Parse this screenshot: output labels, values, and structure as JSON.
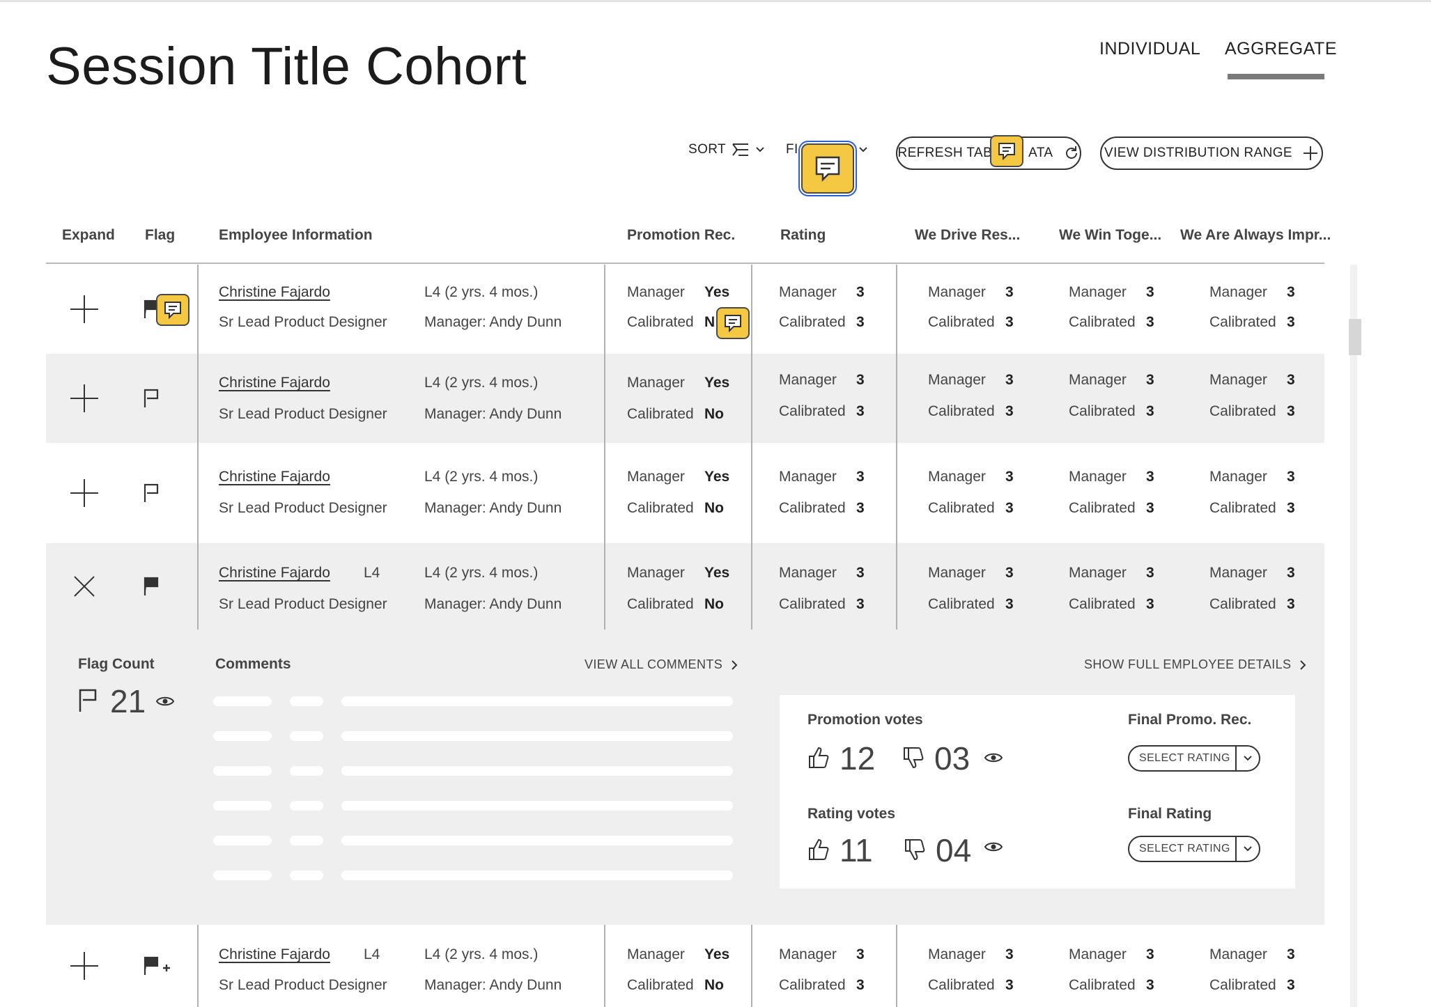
{
  "page": {
    "title": "Session Title Cohort",
    "view_tabs": [
      {
        "label": "INDIVIDUAL",
        "active": false
      },
      {
        "label": "AGGREGATE",
        "active": true
      }
    ]
  },
  "toolbar": {
    "sort_label": "SORT",
    "filter_label": "FI",
    "refresh_label": "REFRESH TAB",
    "refresh_label_tail": "ATA",
    "distribution_label": "VIEW DISTRIBUTION RANGE"
  },
  "columns": [
    "Expand",
    "Flag",
    "Employee Information",
    "Promotion Rec.",
    "Rating",
    "We Drive Res...",
    "We Win Toge...",
    "We Are Always Impr..."
  ],
  "rows": [
    {
      "name": "Christine Fajardo",
      "title": "Sr Lead Product Designer",
      "level_short": "",
      "level": "L4 (2 yrs. 4 mos.)",
      "manager": "Manager: Andy Dunn",
      "promo_manager_label": "Manager",
      "promo_manager": "Yes",
      "promo_calibrated_label": "Calibrated",
      "promo_calibrated": "N",
      "rating_manager": "3",
      "rating_calibrated": "3",
      "v1_manager": "3",
      "v1_calibrated": "3",
      "v2_manager": "3",
      "v2_calibrated": "3",
      "v3_manager": "3",
      "v3_calibrated": "3",
      "expanded": false
    },
    {
      "name": "Christine Fajardo",
      "title": "Sr Lead Product Designer",
      "level_short": "",
      "level": "L4 (2 yrs. 4 mos.)",
      "manager": "Manager: Andy Dunn",
      "promo_manager_label": "Manager",
      "promo_manager": "Yes",
      "promo_calibrated_label": "Calibrated",
      "promo_calibrated": "No",
      "rating_manager": "3",
      "rating_calibrated": "3",
      "v1_manager": "3",
      "v1_calibrated": "3",
      "v2_manager": "3",
      "v2_calibrated": "3",
      "v3_manager": "3",
      "v3_calibrated": "3",
      "expanded": false
    },
    {
      "name": "Christine Fajardo",
      "title": "Sr Lead Product Designer",
      "level_short": "",
      "level": "L4 (2 yrs. 4 mos.)",
      "manager": "Manager: Andy Dunn",
      "promo_manager_label": "Manager",
      "promo_manager": "Yes",
      "promo_calibrated_label": "Calibrated",
      "promo_calibrated": "No",
      "rating_manager": "3",
      "rating_calibrated": "3",
      "v1_manager": "3",
      "v1_calibrated": "3",
      "v2_manager": "3",
      "v2_calibrated": "3",
      "v3_manager": "3",
      "v3_calibrated": "3",
      "expanded": false
    },
    {
      "name": "Christine Fajardo",
      "title": "Sr Lead Product Designer",
      "level_short": "L4",
      "level": "L4 (2 yrs. 4 mos.)",
      "manager": "Manager: Andy Dunn",
      "promo_manager_label": "Manager",
      "promo_manager": "Yes",
      "promo_calibrated_label": "Calibrated",
      "promo_calibrated": "No",
      "rating_manager": "3",
      "rating_calibrated": "3",
      "v1_manager": "3",
      "v1_calibrated": "3",
      "v2_manager": "3",
      "v2_calibrated": "3",
      "v3_manager": "3",
      "v3_calibrated": "3",
      "expanded": true
    },
    {
      "name": "Christine Fajardo",
      "title": "Sr Lead Product Designer",
      "level_short": "L4",
      "level": "L4 (2 yrs. 4 mos.)",
      "manager": "Manager: Andy Dunn",
      "promo_manager_label": "Manager",
      "promo_manager": "Yes",
      "promo_calibrated_label": "Calibrated",
      "promo_calibrated": "No",
      "rating_manager": "3",
      "rating_calibrated": "3",
      "v1_manager": "3",
      "v1_calibrated": "3",
      "v2_manager": "3",
      "v2_calibrated": "3",
      "v3_manager": "3",
      "v3_calibrated": "3",
      "expanded": false
    }
  ],
  "labels": {
    "manager": "Manager",
    "calibrated": "Calibrated"
  },
  "details": {
    "flag_count_label": "Flag Count",
    "flag_count": "21",
    "comments_label": "Comments",
    "view_all_comments": "VIEW ALL COMMENTS",
    "show_full_details": "SHOW FULL EMPLOYEE DETAILS",
    "promotion_votes_label": "Promotion votes",
    "promotion_up": "12",
    "promotion_down": "03",
    "rating_votes_label": "Rating votes",
    "rating_up": "11",
    "rating_down": "04",
    "final_promo_label": "Final Promo. Rec.",
    "final_rating_label": "Final Rating",
    "select_rating": "SELECT RATING"
  },
  "colors": {
    "accent_comment": "#f4c842",
    "focus_outline": "#2d5dd8"
  },
  "icons": [
    "plus-icon",
    "close-icon",
    "flag-outline-icon",
    "flag-filled-icon",
    "flag-add-icon",
    "comment-icon",
    "eye-icon",
    "thumbs-up-icon",
    "thumbs-down-icon",
    "refresh-icon",
    "chevron-down-icon",
    "chevron-right-icon",
    "sort-icon"
  ]
}
